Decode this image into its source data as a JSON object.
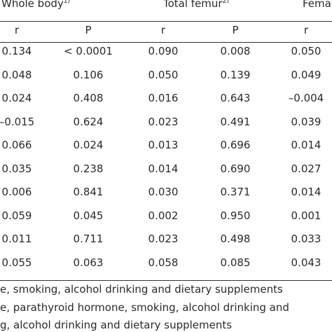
{
  "table": {
    "groups": [
      {
        "label": "Whole body",
        "note": "1)"
      },
      {
        "label": "Total femur",
        "note": "2)"
      },
      {
        "label": "Fema",
        "note": ""
      }
    ],
    "subheaders": [
      "r",
      "P",
      "r",
      "P",
      "r"
    ],
    "rows": [
      [
        "0.134",
        "< 0.0001",
        "0.090",
        "0.008",
        "0.050"
      ],
      [
        "0.048",
        "0.106",
        "0.050",
        "0.139",
        "0.049"
      ],
      [
        "0.024",
        "0.408",
        "0.016",
        "0.643",
        "–0.004"
      ],
      [
        "–0.015",
        "0.624",
        "0.023",
        "0.491",
        "0.039"
      ],
      [
        "0.066",
        "0.024",
        "0.013",
        "0.696",
        "0.014"
      ],
      [
        "0.035",
        "0.238",
        "0.014",
        "0.690",
        "0.027"
      ],
      [
        "0.006",
        "0.841",
        "0.030",
        "0.371",
        "0.014"
      ],
      [
        "0.059",
        "0.045",
        "0.002",
        "0.950",
        "0.001"
      ],
      [
        "0.011",
        "0.711",
        "0.023",
        "0.498",
        "0.033"
      ],
      [
        "0.055",
        "0.063",
        "0.058",
        "0.085",
        "0.043"
      ]
    ]
  },
  "footnotes": [
    "e, smoking, alcohol drinking and dietary supplements",
    "e, parathyroid hormone, smoking, alcohol drinking and",
    "g, alcohol drinking and dietary supplements"
  ]
}
